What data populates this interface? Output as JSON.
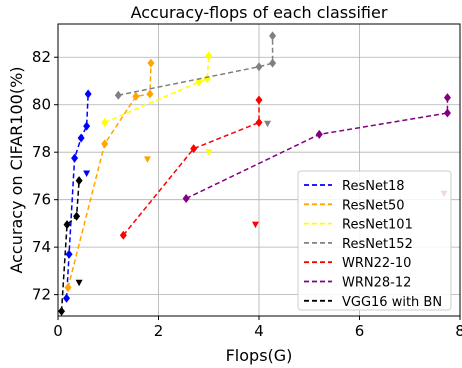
{
  "chart_data": {
    "type": "line",
    "title": "Accuracy-flops of each classifier",
    "xlabel": "Flops(G)",
    "ylabel": "Accuracy on CIFAR100(%)",
    "xlim": [
      0,
      8
    ],
    "ylim": [
      71.1,
      83.4
    ],
    "xticks": [
      0,
      2,
      4,
      6,
      8
    ],
    "yticks": [
      72,
      74,
      76,
      78,
      80,
      82
    ],
    "grid": true,
    "legend_position": "lower-right",
    "series": [
      {
        "name": "ResNet18",
        "color": "#0000ff",
        "points": [
          [
            0.17,
            71.85
          ],
          [
            0.22,
            73.7
          ],
          [
            0.33,
            77.75
          ],
          [
            0.46,
            78.6
          ],
          [
            0.57,
            79.1
          ],
          [
            0.6,
            80.45
          ]
        ],
        "extra_markers": [
          [
            0.57,
            77.1
          ]
        ]
      },
      {
        "name": "ResNet50",
        "color": "#ffa500",
        "points": [
          [
            0.2,
            72.3
          ],
          [
            0.93,
            78.35
          ],
          [
            1.55,
            80.35
          ],
          [
            1.83,
            80.45
          ],
          [
            1.85,
            81.75
          ]
        ],
        "extra_markers": [
          [
            1.78,
            77.7
          ]
        ]
      },
      {
        "name": "ResNet101",
        "color": "#ffff00",
        "points": [
          [
            0.93,
            79.25
          ],
          [
            2.8,
            80.95
          ],
          [
            2.97,
            81.1
          ],
          [
            3.0,
            82.05
          ]
        ],
        "extra_markers": [
          [
            3.0,
            78.0
          ]
        ]
      },
      {
        "name": "ResNet152",
        "color": "#808080",
        "points": [
          [
            1.2,
            80.4
          ],
          [
            4.0,
            81.6
          ],
          [
            4.27,
            81.75
          ],
          [
            4.27,
            82.9
          ]
        ],
        "extra_markers": [
          [
            4.17,
            79.2
          ]
        ]
      },
      {
        "name": "WRN22-10",
        "color": "#ff0000",
        "points": [
          [
            1.3,
            74.5
          ],
          [
            2.7,
            78.15
          ],
          [
            4.0,
            79.25
          ],
          [
            4.0,
            80.2
          ]
        ],
        "extra_markers": [
          [
            3.93,
            74.95
          ]
        ]
      },
      {
        "name": "WRN28-12",
        "color": "#800080",
        "points": [
          [
            2.55,
            76.05
          ],
          [
            5.2,
            78.75
          ],
          [
            7.75,
            79.65
          ],
          [
            7.75,
            80.3
          ]
        ],
        "extra_markers": [
          [
            7.68,
            76.25
          ]
        ]
      },
      {
        "name": "VGG16 with BN",
        "color": "#000000",
        "points": [
          [
            0.07,
            71.3
          ],
          [
            0.18,
            74.95
          ],
          [
            0.37,
            75.3
          ],
          [
            0.42,
            76.8
          ]
        ],
        "extra_markers": [
          [
            0.42,
            72.5
          ]
        ]
      }
    ]
  }
}
